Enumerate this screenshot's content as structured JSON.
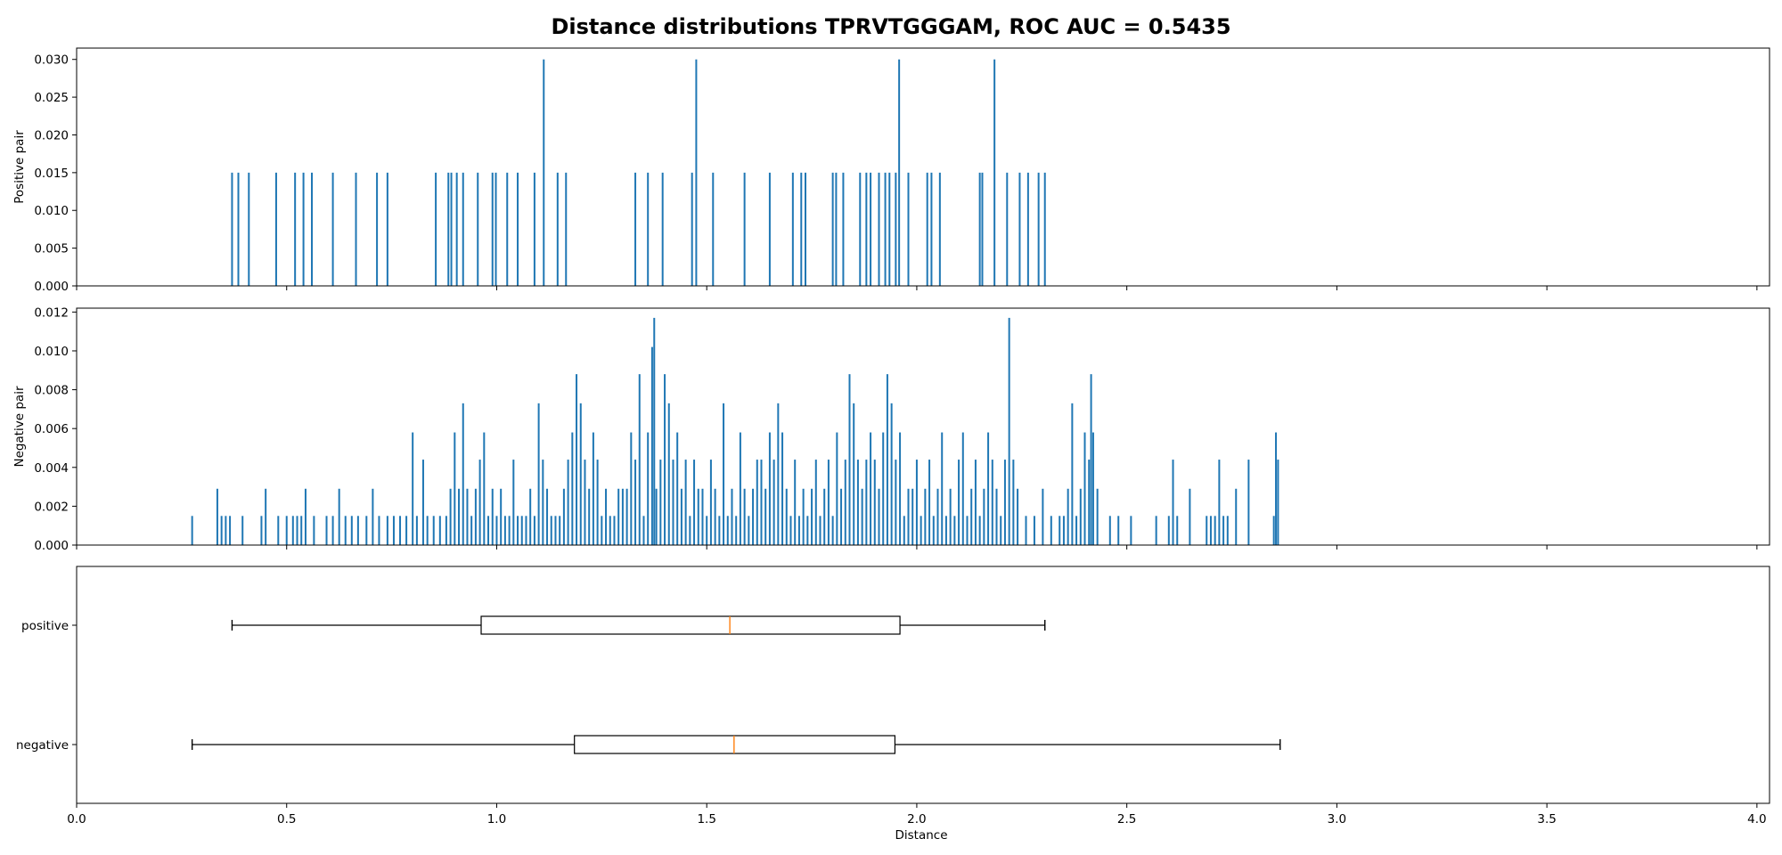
{
  "chart_data": {
    "title": "Distance distributions TPRVTGGGAM, ROC AUC = 0.5435",
    "xlabel": "Distance",
    "xlim": [
      0.0,
      4.03
    ],
    "x_ticks": [
      "0.0",
      "0.5",
      "1.0",
      "1.5",
      "2.0",
      "2.5",
      "3.0",
      "3.5",
      "4.0"
    ],
    "colors": {
      "bars": "#1f77b4",
      "median": "#ff7f0e",
      "axes": "#000000"
    },
    "panels": [
      {
        "type": "bar",
        "ylabel": "Positive pair",
        "ylim": [
          0,
          0.0315
        ],
        "y_ticks": [
          "0.000",
          "0.005",
          "0.010",
          "0.015",
          "0.020",
          "0.025",
          "0.030"
        ],
        "bar_width": 0.004,
        "x": [
          0.37,
          0.385,
          0.41,
          0.475,
          0.52,
          0.54,
          0.56,
          0.61,
          0.665,
          0.715,
          0.74,
          0.855,
          0.885,
          0.892,
          0.905,
          0.92,
          0.955,
          0.99,
          0.998,
          1.025,
          1.05,
          1.09,
          1.112,
          1.145,
          1.165,
          1.33,
          1.36,
          1.395,
          1.465,
          1.475,
          1.515,
          1.59,
          1.65,
          1.705,
          1.725,
          1.735,
          1.8,
          1.808,
          1.825,
          1.865,
          1.88,
          1.89,
          1.91,
          1.925,
          1.935,
          1.95,
          1.958,
          1.98,
          2.025,
          2.035,
          2.055,
          2.15,
          2.156,
          2.185,
          2.215,
          2.245,
          2.265,
          2.29,
          2.305
        ],
        "values": [
          0.015,
          0.015,
          0.015,
          0.015,
          0.015,
          0.015,
          0.015,
          0.015,
          0.015,
          0.015,
          0.015,
          0.015,
          0.015,
          0.015,
          0.015,
          0.015,
          0.015,
          0.015,
          0.015,
          0.015,
          0.015,
          0.015,
          0.03,
          0.015,
          0.015,
          0.015,
          0.015,
          0.015,
          0.015,
          0.03,
          0.015,
          0.015,
          0.015,
          0.015,
          0.015,
          0.015,
          0.015,
          0.015,
          0.015,
          0.015,
          0.015,
          0.015,
          0.015,
          0.015,
          0.015,
          0.015,
          0.03,
          0.015,
          0.015,
          0.015,
          0.015,
          0.015,
          0.015,
          0.03,
          0.015,
          0.015,
          0.015,
          0.015,
          0.015
        ]
      },
      {
        "type": "bar",
        "ylabel": "Negative pair",
        "ylim": [
          0,
          0.0122
        ],
        "y_ticks": [
          "0.000",
          "0.002",
          "0.004",
          "0.006",
          "0.008",
          "0.010",
          "0.012"
        ],
        "bar_width": 0.0042,
        "x": [
          0.275,
          0.335,
          0.345,
          0.355,
          0.365,
          0.395,
          0.44,
          0.45,
          0.48,
          0.5,
          0.515,
          0.525,
          0.535,
          0.545,
          0.565,
          0.595,
          0.61,
          0.625,
          0.64,
          0.655,
          0.67,
          0.69,
          0.705,
          0.72,
          0.74,
          0.755,
          0.77,
          0.785,
          0.8,
          0.81,
          0.825,
          0.835,
          0.85,
          0.865,
          0.88,
          0.89,
          0.9,
          0.91,
          0.92,
          0.93,
          0.94,
          0.95,
          0.96,
          0.97,
          0.98,
          0.99,
          1.0,
          1.01,
          1.02,
          1.03,
          1.04,
          1.05,
          1.06,
          1.07,
          1.08,
          1.09,
          1.1,
          1.11,
          1.12,
          1.13,
          1.14,
          1.15,
          1.16,
          1.17,
          1.18,
          1.19,
          1.2,
          1.21,
          1.22,
          1.23,
          1.24,
          1.25,
          1.26,
          1.27,
          1.28,
          1.29,
          1.3,
          1.31,
          1.32,
          1.33,
          1.34,
          1.35,
          1.36,
          1.37,
          1.375,
          1.38,
          1.39,
          1.4,
          1.41,
          1.42,
          1.43,
          1.44,
          1.45,
          1.46,
          1.47,
          1.48,
          1.49,
          1.5,
          1.51,
          1.52,
          1.53,
          1.54,
          1.55,
          1.56,
          1.57,
          1.58,
          1.59,
          1.6,
          1.61,
          1.62,
          1.63,
          1.64,
          1.65,
          1.66,
          1.67,
          1.68,
          1.69,
          1.7,
          1.71,
          1.72,
          1.73,
          1.74,
          1.75,
          1.76,
          1.77,
          1.78,
          1.79,
          1.8,
          1.81,
          1.82,
          1.83,
          1.84,
          1.85,
          1.86,
          1.87,
          1.88,
          1.89,
          1.9,
          1.91,
          1.92,
          1.93,
          1.94,
          1.95,
          1.96,
          1.97,
          1.98,
          1.99,
          2.0,
          2.01,
          2.02,
          2.03,
          2.04,
          2.05,
          2.06,
          2.07,
          2.08,
          2.09,
          2.1,
          2.11,
          2.12,
          2.13,
          2.14,
          2.15,
          2.16,
          2.17,
          2.18,
          2.19,
          2.2,
          2.21,
          2.22,
          2.23,
          2.24,
          2.26,
          2.28,
          2.3,
          2.32,
          2.34,
          2.35,
          2.36,
          2.37,
          2.38,
          2.39,
          2.4,
          2.41,
          2.415,
          2.42,
          2.43,
          2.46,
          2.48,
          2.51,
          2.57,
          2.6,
          2.61,
          2.62,
          2.65,
          2.69,
          2.7,
          2.71,
          2.72,
          2.73,
          2.74,
          2.76,
          2.79,
          2.85,
          2.855,
          2.86
        ],
        "values": [
          0.0015,
          0.0029,
          0.0015,
          0.0015,
          0.0015,
          0.0015,
          0.0015,
          0.0029,
          0.0015,
          0.0015,
          0.0015,
          0.0015,
          0.0015,
          0.0029,
          0.0015,
          0.0015,
          0.0015,
          0.0029,
          0.0015,
          0.0015,
          0.0015,
          0.0015,
          0.0029,
          0.0015,
          0.0015,
          0.0015,
          0.0015,
          0.0015,
          0.0058,
          0.0015,
          0.0044,
          0.0015,
          0.0015,
          0.0015,
          0.0015,
          0.0029,
          0.0058,
          0.0029,
          0.0073,
          0.0029,
          0.0015,
          0.0029,
          0.0044,
          0.0058,
          0.0015,
          0.0029,
          0.0015,
          0.0029,
          0.0015,
          0.0015,
          0.0044,
          0.0015,
          0.0015,
          0.0015,
          0.0029,
          0.0015,
          0.0073,
          0.0044,
          0.0029,
          0.0015,
          0.0015,
          0.0015,
          0.0029,
          0.0044,
          0.0058,
          0.0088,
          0.0073,
          0.0044,
          0.0029,
          0.0058,
          0.0044,
          0.0015,
          0.0029,
          0.0015,
          0.0015,
          0.0029,
          0.0029,
          0.0029,
          0.0058,
          0.0044,
          0.0088,
          0.0015,
          0.0058,
          0.0102,
          0.0117,
          0.0029,
          0.0044,
          0.0088,
          0.0073,
          0.0044,
          0.0058,
          0.0029,
          0.0044,
          0.0015,
          0.0044,
          0.0029,
          0.0029,
          0.0015,
          0.0044,
          0.0029,
          0.0015,
          0.0073,
          0.0015,
          0.0029,
          0.0015,
          0.0058,
          0.0029,
          0.0015,
          0.0029,
          0.0044,
          0.0044,
          0.0029,
          0.0058,
          0.0044,
          0.0073,
          0.0058,
          0.0029,
          0.0015,
          0.0044,
          0.0015,
          0.0029,
          0.0015,
          0.0029,
          0.0044,
          0.0015,
          0.0029,
          0.0044,
          0.0015,
          0.0058,
          0.0029,
          0.0044,
          0.0088,
          0.0073,
          0.0044,
          0.0029,
          0.0044,
          0.0058,
          0.0044,
          0.0029,
          0.0058,
          0.0088,
          0.0073,
          0.0044,
          0.0058,
          0.0015,
          0.0029,
          0.0029,
          0.0044,
          0.0015,
          0.0029,
          0.0044,
          0.0015,
          0.0029,
          0.0058,
          0.0015,
          0.0029,
          0.0015,
          0.0044,
          0.0058,
          0.0015,
          0.0029,
          0.0044,
          0.0015,
          0.0029,
          0.0058,
          0.0044,
          0.0029,
          0.0015,
          0.0044,
          0.0117,
          0.0044,
          0.0029,
          0.0015,
          0.0015,
          0.0029,
          0.0015,
          0.0015,
          0.0015,
          0.0029,
          0.0073,
          0.0015,
          0.0029,
          0.0058,
          0.0044,
          0.0088,
          0.0058,
          0.0029,
          0.0015,
          0.0015,
          0.0015,
          0.0015,
          0.0015,
          0.0044,
          0.0015,
          0.0029,
          0.0015,
          0.0015,
          0.0015,
          0.0044,
          0.0015,
          0.0015,
          0.0029,
          0.0044,
          0.0015,
          0.0058,
          0.0044
        ]
      },
      {
        "type": "boxplot",
        "categories": [
          "positive",
          "negative"
        ],
        "boxes": [
          {
            "label": "positive",
            "whisker_low": 0.37,
            "q1": 0.963,
            "median": 1.555,
            "q3": 1.96,
            "whisker_high": 2.305
          },
          {
            "label": "negative",
            "whisker_low": 0.275,
            "q1": 1.185,
            "median": 1.565,
            "q3": 1.948,
            "whisker_high": 2.865
          }
        ]
      }
    ]
  }
}
